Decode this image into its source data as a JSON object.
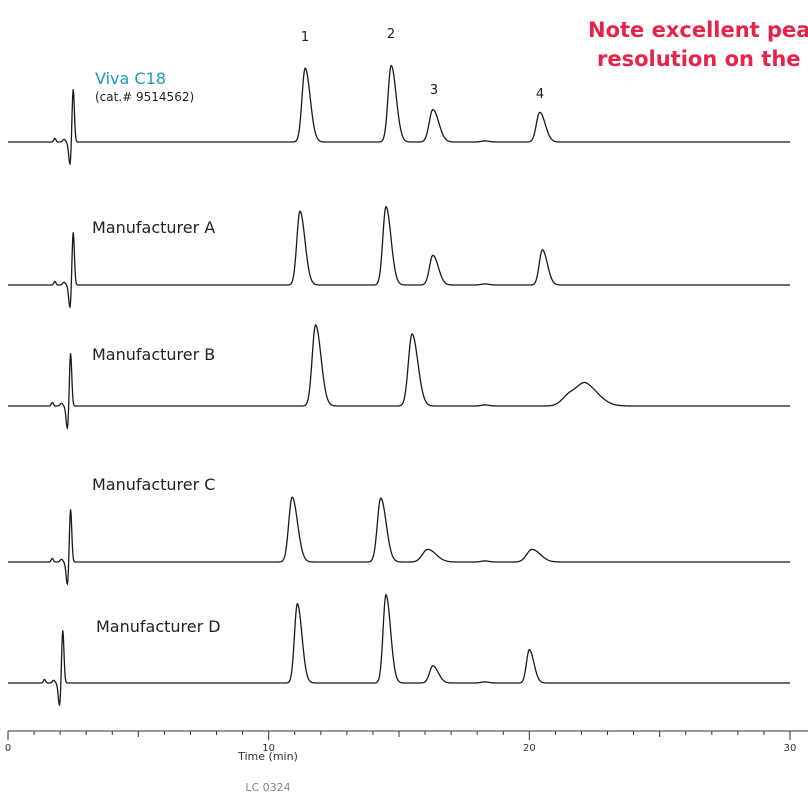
{
  "chart_data": {
    "type": "line",
    "note": "Note excellent peak resolution on the",
    "xlabel": "Time (min)",
    "xlim": [
      0,
      30
    ],
    "x_tick_labels": [
      "0",
      "10",
      "20",
      "30"
    ],
    "footer_code": "LC 0324",
    "series": [
      {
        "name": "Viva C18",
        "subtitle": "(cat.# 9514562)",
        "peaks": [
          {
            "label": "1",
            "time": 11.4,
            "height": 82,
            "width": 0.12
          },
          {
            "label": "2",
            "time": 14.7,
            "height": 85,
            "width": 0.12
          },
          {
            "label": "3",
            "time": 16.3,
            "height": 36,
            "width": 0.14
          },
          {
            "label": "4",
            "time": 20.4,
            "height": 33,
            "width": 0.13
          }
        ],
        "void_time": 2.5
      },
      {
        "name": "Manufacturer A",
        "peaks": [
          {
            "time": 11.2,
            "height": 82,
            "width": 0.12
          },
          {
            "time": 14.5,
            "height": 87,
            "width": 0.12
          },
          {
            "time": 16.3,
            "height": 33,
            "width": 0.13
          },
          {
            "time": 20.5,
            "height": 39,
            "width": 0.12
          }
        ],
        "void_time": 2.5
      },
      {
        "name": "Manufacturer B",
        "peaks": [
          {
            "time": 11.8,
            "height": 90,
            "width": 0.13
          },
          {
            "time": 15.5,
            "height": 80,
            "width": 0.14
          },
          {
            "time": 21.6,
            "height": 14,
            "width": 0.3
          },
          {
            "time": 22.2,
            "height": 19,
            "width": 0.3
          }
        ],
        "void_time": 2.4
      },
      {
        "name": "Manufacturer C",
        "peaks": [
          {
            "time": 10.9,
            "height": 72,
            "width": 0.13
          },
          {
            "time": 14.3,
            "height": 71,
            "width": 0.13
          },
          {
            "time": 16.1,
            "height": 14,
            "width": 0.2
          },
          {
            "time": 20.1,
            "height": 14,
            "width": 0.2
          }
        ],
        "void_time": 2.4
      },
      {
        "name": "Manufacturer D",
        "peaks": [
          {
            "time": 11.1,
            "height": 88,
            "width": 0.11
          },
          {
            "time": 14.5,
            "height": 98,
            "width": 0.11
          },
          {
            "time": 16.3,
            "height": 19,
            "width": 0.13
          },
          {
            "time": 20.0,
            "height": 37,
            "width": 0.11
          }
        ],
        "void_time": 2.1
      }
    ],
    "colors": {
      "trace": "#1a1a1a",
      "viva_name": "#1b9bb8",
      "note": "#e8234a",
      "axis": "#333333",
      "footer": "#888888"
    }
  }
}
